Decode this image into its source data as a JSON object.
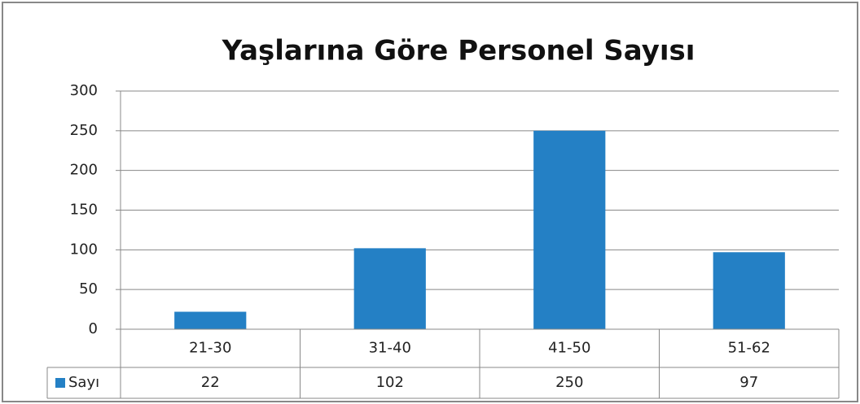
{
  "chart_data": {
    "type": "bar",
    "title": "Yaşlarına Göre Personel Sayısı",
    "categories": [
      "21-30",
      "31-40",
      "41-50",
      "51-62"
    ],
    "series": [
      {
        "name": "Sayı",
        "color": "#2480c5",
        "values": [
          22,
          102,
          250,
          97
        ]
      }
    ],
    "ylim": [
      0,
      300
    ],
    "yticks": [
      0,
      50,
      100,
      150,
      200,
      250,
      300
    ],
    "grid": true,
    "data_table": true
  }
}
